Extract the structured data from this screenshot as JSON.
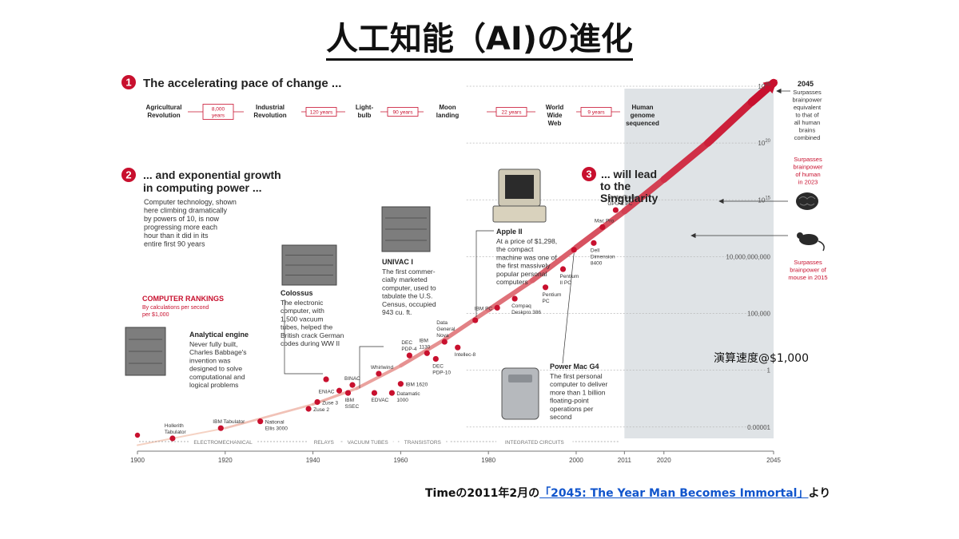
{
  "slide": {
    "title": "人工知能（AI)の進化",
    "speed_label": "演算速度@$1,000",
    "source_prefix": "Timeの2011年2月の",
    "source_link": "「2045: The Year Man Becomes Immortal」",
    "source_suffix": "より"
  },
  "sections": {
    "s1": {
      "number": "1",
      "title": "The accelerating pace of change ..."
    },
    "s2": {
      "number": "2",
      "title_line1": "... and exponential growth",
      "title_line2": "in computing power ...",
      "body": [
        "Computer technology, shown",
        "here climbing dramatically",
        "by powers of 10, is now",
        "progressing more each",
        "hour than it did in its",
        "entire first 90 years"
      ]
    },
    "s3": {
      "number": "3",
      "title_line1": "... will lead",
      "title_line2": "to the",
      "title_line3": "Singularity"
    }
  },
  "pace_timeline": {
    "events": [
      {
        "label_lines": [
          "Agricultural",
          "Revolution"
        ]
      },
      {
        "label_lines": [
          "Industrial",
          "Revolution"
        ]
      },
      {
        "label_lines": [
          "Light-",
          "bulb"
        ]
      },
      {
        "label_lines": [
          "Moon",
          "landing"
        ]
      },
      {
        "label_lines": [
          "World",
          "Wide",
          "Web"
        ]
      },
      {
        "label_lines": [
          "Human",
          "genome",
          "sequenced"
        ]
      }
    ],
    "gaps": [
      {
        "label_lines": [
          "8,000",
          "years"
        ]
      },
      {
        "label_lines": [
          "120 years"
        ]
      },
      {
        "label_lines": [
          "90 years"
        ]
      },
      {
        "label_lines": [
          "22 years"
        ]
      },
      {
        "label_lines": [
          "9 years"
        ]
      }
    ]
  },
  "rankings": {
    "title": "COMPUTER RANKINGS",
    "sub_line1": "By calculations per second",
    "sub_line2": "per $1,000"
  },
  "callouts": {
    "analytical": {
      "title": "Analytical engine",
      "lines": [
        "Never fully built,",
        "Charles Babbage's",
        "invention was",
        "designed to solve",
        "computational and",
        "logical problems"
      ]
    },
    "colossus": {
      "title": "Colossus",
      "lines": [
        "The electronic",
        "computer, with",
        "1,500 vacuum",
        "tubes, helped the",
        "British crack German",
        "codes during WW II"
      ]
    },
    "univac": {
      "title": "UNIVAC I",
      "lines": [
        "The first commer-",
        "cially marketed",
        "computer, used to",
        "tabulate the U.S.",
        "Census, occupied",
        "943 cu. ft."
      ]
    },
    "apple": {
      "title": "Apple II",
      "lines": [
        "At a price of $1,298,",
        "the compact",
        "machine was one of",
        "the first massively",
        "popular personal",
        "computers"
      ]
    },
    "powermac": {
      "title": "Power Mac G4",
      "lines": [
        "The first personal",
        "computer to deliver",
        "more than 1 billion",
        "floating-point",
        "operations per",
        "second"
      ]
    }
  },
  "right_notes": {
    "year2045": "2045",
    "n2045": [
      "Surpasses",
      "brainpower",
      "equivalent",
      "to that of",
      "all human",
      "brains",
      "combined"
    ],
    "human": [
      "Surpasses",
      "brainpower",
      "of human",
      "in 2023"
    ],
    "mouse": [
      "Surpasses",
      "brainpower of",
      "mouse in 2015"
    ]
  },
  "chart_data": {
    "type": "line",
    "title": "人工知能（AI)の進化",
    "xlabel": "",
    "ylabel": "演算速度@$1,000",
    "xlim": [
      1900,
      2045
    ],
    "y_scale": "log",
    "ylim_exponent": [
      -6,
      25
    ],
    "x_ticks": [
      {
        "label": "1900",
        "x": 1900
      },
      {
        "label": "1920",
        "x": 1920
      },
      {
        "label": "1940",
        "x": 1940
      },
      {
        "label": "1960",
        "x": 1960
      },
      {
        "label": "1980",
        "x": 1980
      },
      {
        "label": "2000",
        "x": 2000
      },
      {
        "label": "2011",
        "x": 2011
      },
      {
        "label": "2020",
        "x": 2020
      },
      {
        "label": "2045",
        "x": 2045
      }
    ],
    "y_ticks": [
      {
        "label": "0.00001",
        "exp": -5
      },
      {
        "label": "1",
        "exp": 0
      },
      {
        "label": "100,000",
        "exp": 5
      },
      {
        "label": "10,000,000,000",
        "exp": 10
      },
      {
        "label": "10",
        "sup": "15",
        "exp": 15
      },
      {
        "label": "10",
        "sup": "20",
        "exp": 20
      },
      {
        "label": "10",
        "sup": "25",
        "exp": 25
      }
    ],
    "eras": [
      {
        "label": "ELECTROMECHANICAL",
        "from": 1900,
        "to": 1939
      },
      {
        "label": "RELAYS",
        "from": 1939,
        "to": 1946
      },
      {
        "label": "VACUUM TUBES",
        "from": 1946,
        "to": 1959
      },
      {
        "label": "TRANSISTORS",
        "from": 1959,
        "to": 1971
      },
      {
        "label": "INTEGRATED CIRCUITS",
        "from": 1971,
        "to": 2010
      }
    ],
    "projection_from": 2011,
    "trend": [
      {
        "x": 1900,
        "exp": -6.6
      },
      {
        "x": 1920,
        "exp": -5.1
      },
      {
        "x": 1940,
        "exp": -3.0
      },
      {
        "x": 1950,
        "exp": -1.6
      },
      {
        "x": 1960,
        "exp": 0.4
      },
      {
        "x": 1970,
        "exp": 2.7
      },
      {
        "x": 1980,
        "exp": 5.3
      },
      {
        "x": 1990,
        "exp": 7.9
      },
      {
        "x": 2000,
        "exp": 10.8
      },
      {
        "x": 2011,
        "exp": 14.0
      },
      {
        "x": 2020,
        "exp": 16.8
      },
      {
        "x": 2030,
        "exp": 20.0
      },
      {
        "x": 2040,
        "exp": 23.6
      },
      {
        "x": 2045,
        "exp": 25.3
      }
    ],
    "points": [
      {
        "name": "Hollerith Tabulator",
        "x": 1908,
        "exp": -6.0,
        "lines": [
          "Hollerith",
          "Tabulator"
        ],
        "side": "above"
      },
      {
        "name": "IBM Tabulator",
        "x": 1919,
        "exp": -5.1,
        "lines": [
          "IBM Tabulator"
        ],
        "side": "above"
      },
      {
        "name": "National Ellis 3000",
        "x": 1928,
        "exp": -4.5,
        "lines": [
          "National",
          "Ellis 3000"
        ],
        "side": "right"
      },
      {
        "name": "Zuse 2",
        "x": 1939,
        "exp": -3.4,
        "lines": [
          "Zuse 2"
        ],
        "side": "right"
      },
      {
        "name": "Zuse 3",
        "x": 1941,
        "exp": -2.8,
        "lines": [
          "Zuse 3"
        ],
        "side": "right"
      },
      {
        "name": "ENIAC",
        "x": 1946,
        "exp": -1.8,
        "lines": [
          "ENIAC"
        ],
        "side": "left"
      },
      {
        "name": "IBM SSEC",
        "x": 1948,
        "exp": -2.0,
        "lines": [
          "IBM",
          "SSEC"
        ],
        "side": "below"
      },
      {
        "name": "BINAC",
        "x": 1949,
        "exp": -1.3,
        "lines": [
          "BINAC"
        ],
        "side": "above"
      },
      {
        "name": "Colossus",
        "x": 1943,
        "exp": -0.8,
        "lines": [],
        "side": "none"
      },
      {
        "name": "EDVAC",
        "x": 1954,
        "exp": -2.0,
        "lines": [
          "EDVAC"
        ],
        "side": "below"
      },
      {
        "name": "Whirlwind",
        "x": 1955,
        "exp": -0.3,
        "lines": [
          "Whirlwind"
        ],
        "side": "above"
      },
      {
        "name": "Datamatic 1000",
        "x": 1958,
        "exp": -2.0,
        "lines": [
          "Datamatic",
          "1000"
        ],
        "side": "right"
      },
      {
        "name": "IBM 1620",
        "x": 1960,
        "exp": -1.2,
        "lines": [
          "IBM 1620"
        ],
        "side": "right"
      },
      {
        "name": "DEC PDP-4",
        "x": 1962,
        "exp": 1.3,
        "lines": [
          "DEC",
          "PDP-4"
        ],
        "side": "above"
      },
      {
        "name": "IBM 1130",
        "x": 1966,
        "exp": 1.5,
        "lines": [
          "IBM",
          "1130"
        ],
        "side": "above"
      },
      {
        "name": "DEC PDP-10",
        "x": 1968,
        "exp": 1.0,
        "lines": [
          "DEC",
          "PDP-10"
        ],
        "side": "below"
      },
      {
        "name": "Data General Nova",
        "x": 1970,
        "exp": 2.5,
        "lines": [
          "Data",
          "General",
          "Nova"
        ],
        "side": "above"
      },
      {
        "name": "Intellec-8",
        "x": 1973,
        "exp": 2.0,
        "lines": [
          "Intellec-8"
        ],
        "side": "below"
      },
      {
        "name": "Apple II",
        "x": 1977,
        "exp": 4.4,
        "lines": [],
        "side": "none"
      },
      {
        "name": "IBM PC",
        "x": 1982,
        "exp": 5.5,
        "lines": [
          "IBM PC"
        ],
        "side": "left"
      },
      {
        "name": "Compaq Deskpro 386",
        "x": 1986,
        "exp": 6.3,
        "lines": [
          "Compaq",
          "Deskpro 386"
        ],
        "side": "below"
      },
      {
        "name": "Pentium PC",
        "x": 1993,
        "exp": 7.3,
        "lines": [
          "Pentium",
          "PC"
        ],
        "side": "below"
      },
      {
        "name": "Pentium II PC",
        "x": 1997,
        "exp": 8.9,
        "lines": [
          "Pentium",
          "II PC"
        ],
        "side": "below"
      },
      {
        "name": "Power Mac G4",
        "x": 1999.5,
        "exp": 10.6,
        "lines": [],
        "side": "none"
      },
      {
        "name": "Dell Dimension 8400",
        "x": 2004,
        "exp": 11.2,
        "lines": [
          "Dell",
          "Dimension",
          "8400"
        ],
        "side": "below"
      },
      {
        "name": "Mac Pro",
        "x": 2006,
        "exp": 12.6,
        "lines": [
          "Mac Pro"
        ],
        "side": "above"
      },
      {
        "name": "Nvidia Tesla GPU & PC",
        "x": 2009,
        "exp": 14.1,
        "lines": [
          "Nvidia Tesla",
          "GPU & PC"
        ],
        "side": "above"
      }
    ]
  },
  "colors": {
    "accent": "#c8102e",
    "shade": "#dfe3e6",
    "text": "#222222"
  }
}
